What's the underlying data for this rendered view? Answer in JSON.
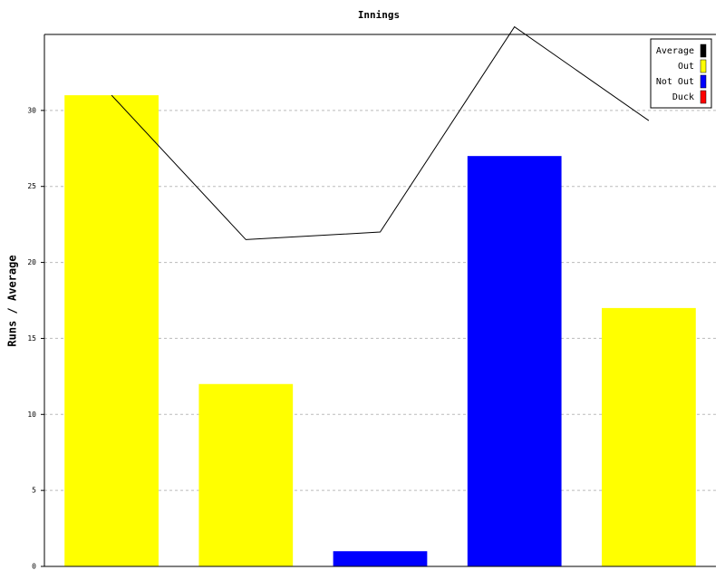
{
  "chart_data": {
    "type": "bar",
    "title": "Innings",
    "ylabel": "Runs / Average",
    "categories": [
      null,
      null,
      null,
      null,
      null
    ],
    "series": [
      {
        "name": "Average",
        "color": "#000000",
        "type": "line",
        "values": [
          31,
          21.5,
          22,
          35.5,
          29.33
        ]
      },
      {
        "name": "Out",
        "color": "#ffff00",
        "type": "bar",
        "values": [
          31,
          12,
          null,
          null,
          17
        ]
      },
      {
        "name": "Not Out",
        "color": "#0000ff",
        "type": "bar",
        "values": [
          null,
          null,
          1,
          27,
          null
        ]
      },
      {
        "name": "Duck",
        "color": "#ff0000",
        "type": "bar",
        "values": [
          null,
          null,
          null,
          null,
          null
        ]
      }
    ],
    "ylim": [
      0,
      35
    ],
    "yticks": [
      0,
      5,
      10,
      15,
      20,
      25,
      30
    ],
    "grid": true,
    "legend": "top-right"
  }
}
